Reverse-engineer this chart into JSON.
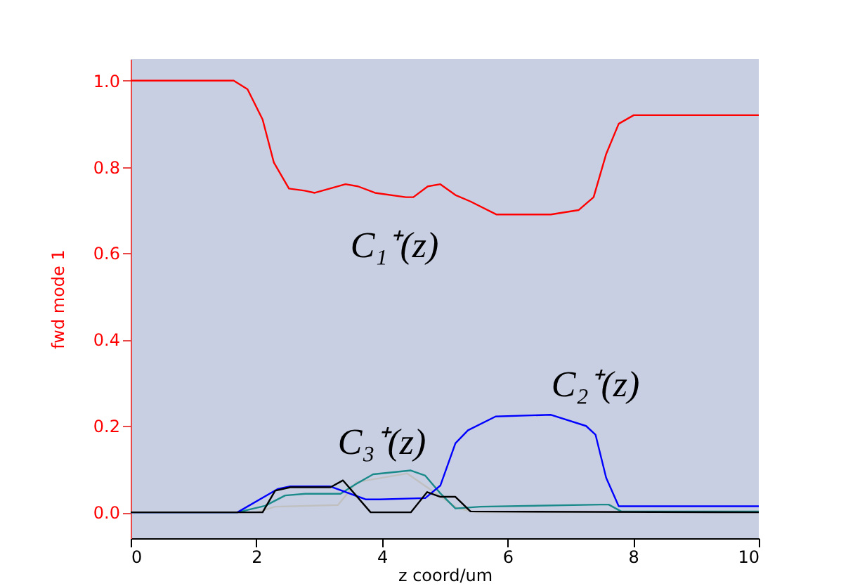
{
  "chart_data": {
    "type": "line",
    "ylabel": "fwd mode 1",
    "xlabel": "z coord/um",
    "xlim": [
      0,
      10
    ],
    "ylim": [
      -0.06,
      1.05
    ],
    "xticks": [
      0,
      2,
      4,
      6,
      8,
      10
    ],
    "yticks": [
      {
        "value": 0,
        "label": "0.0"
      },
      {
        "value": 0.2,
        "label": "0.2"
      },
      {
        "value": 0.4,
        "label": "0.4"
      },
      {
        "value": 0.6,
        "label": "0.6"
      },
      {
        "value": 0.8,
        "label": "0.8"
      },
      {
        "value": 1,
        "label": "1.0"
      }
    ],
    "grid": false,
    "legend": false,
    "series": [
      {
        "color": "#c0c0c0",
        "x": [
          0,
          2.0,
          2.3,
          3.3,
          3.6,
          4.4,
          4.8,
          5.2,
          5.5,
          10
        ],
        "values": [
          0,
          0,
          0.013,
          0.017,
          0.07,
          0.09,
          0.05,
          0.01,
          0,
          0
        ]
      },
      {
        "color": "#ff0000",
        "x": [
          0,
          1.64,
          1.86,
          2.1,
          2.28,
          2.52,
          2.77,
          2.93,
          3.42,
          3.62,
          3.89,
          4.38,
          4.5,
          4.73,
          4.93,
          5.17,
          5.41,
          5.82,
          6.69,
          7.13,
          7.37,
          7.57,
          7.77,
          8.01,
          10
        ],
        "values": [
          1.0,
          1.0,
          0.98,
          0.91,
          0.81,
          0.75,
          0.745,
          0.74,
          0.76,
          0.755,
          0.74,
          0.73,
          0.73,
          0.755,
          0.76,
          0.735,
          0.72,
          0.69,
          0.69,
          0.7,
          0.73,
          0.83,
          0.9,
          0.92,
          0.92
        ]
      },
      {
        "color": "#1a8a8a",
        "x": [
          0,
          1.7,
          2.14,
          2.46,
          2.78,
          3.34,
          3.58,
          3.86,
          4.46,
          4.69,
          4.93,
          5.17,
          5.57,
          7.49,
          7.61,
          7.81,
          10
        ],
        "values": [
          0,
          0,
          0.015,
          0.039,
          0.043,
          0.043,
          0.065,
          0.088,
          0.097,
          0.085,
          0.044,
          0.009,
          0.013,
          0.018,
          0.018,
          0.002,
          0.002
        ]
      },
      {
        "color": "#0000ff",
        "x": [
          0,
          1.7,
          2.34,
          2.54,
          3.18,
          3.74,
          3.96,
          4.69,
          4.93,
          5.17,
          5.37,
          5.81,
          6.69,
          7.25,
          7.4,
          7.57,
          7.77,
          10
        ],
        "values": [
          0,
          0,
          0.054,
          0.06,
          0.06,
          0.03,
          0.03,
          0.033,
          0.062,
          0.16,
          0.19,
          0.222,
          0.226,
          0.2,
          0.18,
          0.08,
          0.014,
          0.014
        ]
      },
      {
        "color": "#000000",
        "x": [
          0,
          2.1,
          2.3,
          2.54,
          3.18,
          3.38,
          3.82,
          4.46,
          4.72,
          4.93,
          5.17,
          5.41,
          10
        ],
        "values": [
          0,
          0,
          0.05,
          0.058,
          0.058,
          0.074,
          0,
          0,
          0.047,
          0.036,
          0.036,
          0.002,
          0
        ]
      }
    ],
    "annotations": [
      "C₁⁺(z)",
      "C₂⁺(z)",
      "C₃⁺(z)"
    ]
  }
}
